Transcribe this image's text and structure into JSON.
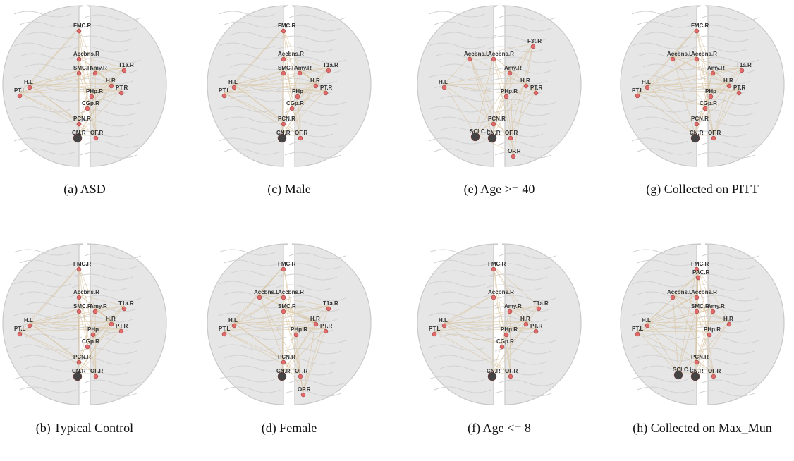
{
  "colors": {
    "brain_fill": "#e6e6e6",
    "brain_stroke": "#c8c8c8",
    "edge": "#d9c4a0",
    "node": "#e36a6a",
    "node_dark": "#444444"
  },
  "panels": [
    {
      "id": "a",
      "caption": "(a) ASD",
      "labels": [
        "FMC.R",
        "Accbns.R",
        "SMC.R",
        "Amy.R",
        "T1a.R",
        "H.L",
        "H.R",
        "PT.L",
        "PT.R",
        "PHp.R",
        "PCN.R",
        "CN.R",
        "OF.R",
        "CGp.R"
      ]
    },
    {
      "id": "b",
      "caption": "(b) Typical Control",
      "labels": [
        "FMC.R",
        "Accbns.R",
        "SMC.R",
        "Amy.R",
        "T1a.R",
        "H.L",
        "H.R",
        "PT.L",
        "PT.R",
        "PHp",
        "PCN.R",
        "CN.R",
        "OF.R",
        "CGp.R"
      ]
    },
    {
      "id": "c",
      "caption": "(c) Male",
      "labels": [
        "FMC.R",
        "Accbns.R",
        "SMC.R",
        "Amy.R",
        "T1a.R",
        "H.L",
        "H.R",
        "PT.L",
        "PT.R",
        "PHp",
        "PCN.R",
        "CN.R",
        "OF.R",
        "CGp.R"
      ]
    },
    {
      "id": "d",
      "caption": "(d) Female",
      "labels": [
        "FMC.R",
        "Accbns.L",
        "Accbns.R",
        "SMC.R",
        "T1a.R",
        "H.L",
        "H.R",
        "PT.L",
        "PT.R",
        "PHp.R",
        "PCN.R",
        "CN.R",
        "OF.R",
        "OP.R"
      ]
    },
    {
      "id": "e",
      "caption": "(e) Age >= 40",
      "labels": [
        "F3t.R",
        "Accbns.L",
        "Accbns.R",
        "Amy.R",
        "H.L",
        "H.R",
        "PT.R",
        "PHp.R",
        "PCN.R",
        "SCLC.L",
        "CN.R",
        "OF.R",
        "OP.R"
      ]
    },
    {
      "id": "f",
      "caption": "(f) Age <= 8",
      "labels": [
        "FMC.R",
        "Accbns.R",
        "Amy.R",
        "T1a.R",
        "H.L",
        "H.R",
        "PT.L",
        "PT.R",
        "PHp.R",
        "CGp.R",
        "CN.R",
        "OF.R"
      ]
    },
    {
      "id": "g",
      "caption": "(g) Collected on PITT",
      "labels": [
        "FMC.R",
        "Accbns.L",
        "Accbns.R",
        "Amy.R",
        "T1a.R",
        "H.L",
        "H.R",
        "PT.L",
        "PT.R",
        "PHp",
        "CGp.R",
        "PCN.R",
        "CN.R",
        "OF.R"
      ]
    },
    {
      "id": "h",
      "caption": "(h) Collected on Max_Mun",
      "labels": [
        "FMC.R",
        "PAC.R",
        "Accbns.L",
        "Accbns.R",
        "SMC.R",
        "Amy.R",
        "H.L",
        "H.R",
        "PT.L",
        "PHp.R",
        "PCN.R",
        "SCLC.L",
        "CN.R",
        "OF.R"
      ]
    }
  ]
}
